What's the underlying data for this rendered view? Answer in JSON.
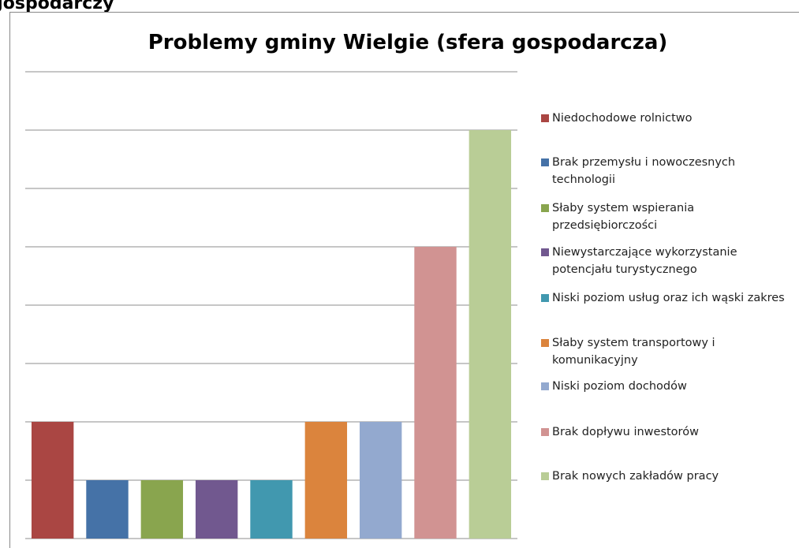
{
  "header": {
    "text": "gospodarczy"
  },
  "chart_data": {
    "type": "bar",
    "title": "Problemy gminy Wielgie (sfera gospodarcza)",
    "categories": [
      "Niedochodowe rolnictwo",
      "Brak przemysłu i nowoczesnych technologii",
      "Słaby system wspierania przedsiębiorczości",
      "Niewystarczające wykorzystanie potencjału turystycznego",
      "Niski poziom usług oraz ich wąski zakres",
      "Słaby system transportowy i komunikacyjny",
      "Niski poziom dochodów",
      "Brak dopływu inwestorów",
      "Brak nowych zakładów pracy"
    ],
    "values": [
      2,
      1,
      1,
      1,
      1,
      2,
      2,
      5,
      7
    ],
    "colors": [
      "#AA4643",
      "#4572A7",
      "#89A54E",
      "#71588F",
      "#4198AF",
      "#DB843D",
      "#93A9CF",
      "#D19392",
      "#B9CD96"
    ],
    "ylim": [
      0,
      8
    ],
    "yticks": [
      0,
      1,
      2,
      3,
      4,
      5,
      6,
      7,
      8
    ],
    "grid": true,
    "legend": "right"
  }
}
